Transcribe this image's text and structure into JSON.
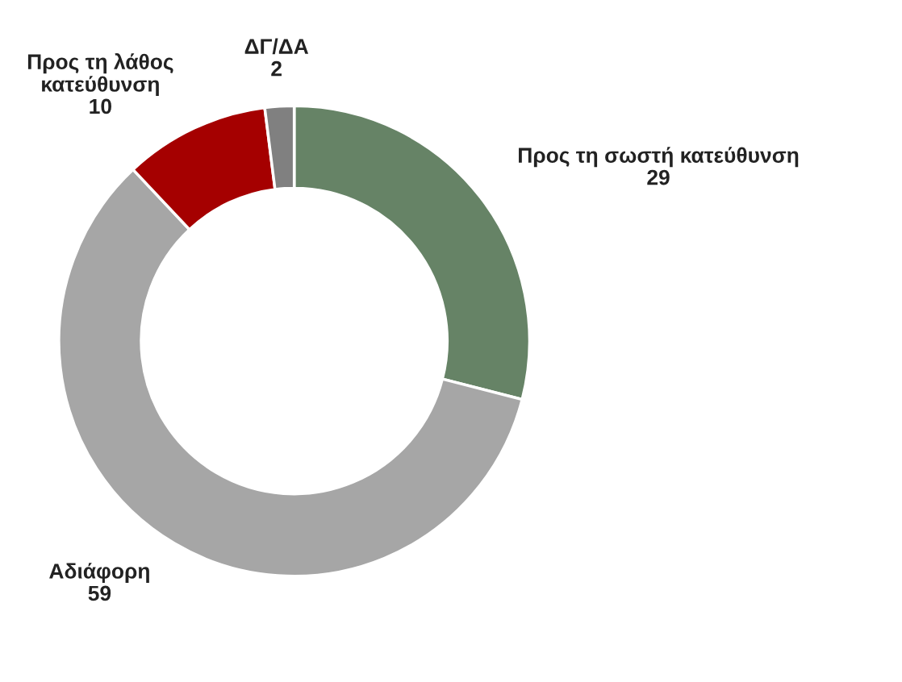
{
  "chart_data": {
    "type": "donut",
    "categories": [
      "Προς τη σωστή κατεύθυνση",
      "Αδιάφορη",
      "Προς τη λάθος\nκατεύθυνση",
      "ΔΓ/ΔΑ"
    ],
    "values": [
      29,
      59,
      10,
      2
    ],
    "colors": [
      "#668366",
      "#a6a6a6",
      "#a50000",
      "#808080"
    ],
    "data_labels": true,
    "legend": false
  }
}
